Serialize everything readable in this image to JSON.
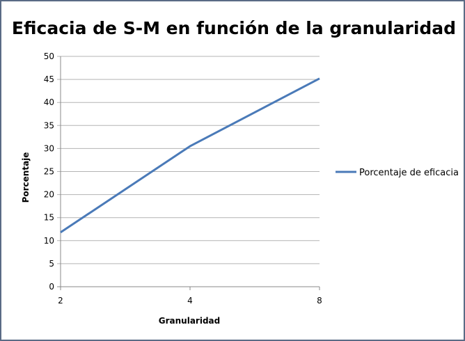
{
  "chart_data": {
    "type": "line",
    "title": "Eficacia de S-M en función de la granularidad",
    "xlabel": "Granularidad",
    "ylabel": "Porcentaje",
    "categories": [
      "2",
      "4",
      "8"
    ],
    "series": [
      {
        "name": "Porcentaje de eficacia",
        "values": [
          11.8,
          30.5,
          45.2
        ],
        "color": "#4a7ab8"
      }
    ],
    "ylim": [
      0,
      50
    ],
    "yticks": [
      0,
      5,
      10,
      15,
      20,
      25,
      30,
      35,
      40,
      45,
      50
    ],
    "grid": true,
    "legend_position": "right"
  }
}
